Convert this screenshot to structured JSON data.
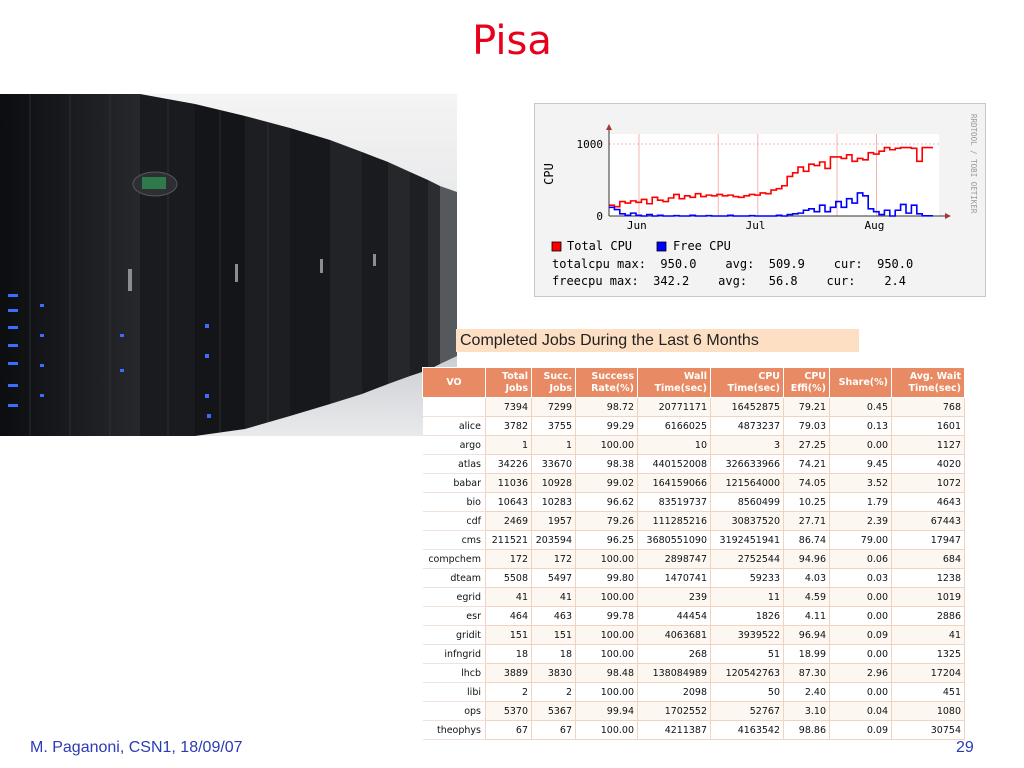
{
  "slide": {
    "title": "Pisa",
    "footer_left": "M. Paganoni, CSN1, 18/09/07",
    "page_number": "29"
  },
  "photo": {
    "description_icon": "server-racks-photo"
  },
  "rrd_chart": {
    "side_label": "RRDTOOL / TOBI OETIKER",
    "legend": {
      "total_label": "Total CPU",
      "free_label": "Free CPU",
      "total_color": "#ff0000",
      "free_color": "#0000ff"
    },
    "stats": {
      "line1": "totalcpu max:  950.0    avg:  509.9    cur:  950.0",
      "line2": "freecpu max:  342.2    avg:   56.8    cur:    2.4"
    }
  },
  "chart_data": {
    "type": "line",
    "title": "",
    "xlabel": "",
    "ylabel": "CPU",
    "ylim": [
      0,
      1000
    ],
    "y_ticks": [
      "0",
      "1000"
    ],
    "x_tick_labels": [
      "Jun",
      "Jul",
      "Aug"
    ],
    "grid": true,
    "legend_placement": "bottom",
    "series": [
      {
        "name": "Total CPU",
        "color": "#ff0000",
        "values": [
          150,
          130,
          200,
          180,
          210,
          190,
          230,
          170,
          260,
          220,
          200,
          250,
          300,
          240,
          280,
          260,
          310,
          270,
          290,
          280,
          300,
          280,
          290,
          270,
          260,
          280,
          300,
          290,
          320,
          310,
          360,
          380,
          420,
          550,
          600,
          680,
          620,
          720,
          700,
          750,
          660,
          820,
          820,
          800,
          850,
          760,
          800,
          780,
          880,
          860,
          900,
          950,
          920,
          940,
          950,
          950,
          940,
          760,
          950,
          950
        ]
      },
      {
        "name": "Free CPU",
        "color": "#0000ff",
        "values": [
          120,
          90,
          30,
          10,
          40,
          10,
          0,
          20,
          0,
          10,
          0,
          0,
          5,
          0,
          0,
          10,
          0,
          0,
          5,
          0,
          0,
          0,
          10,
          0,
          0,
          0,
          5,
          0,
          0,
          0,
          0,
          10,
          0,
          20,
          30,
          40,
          80,
          100,
          60,
          150,
          60,
          120,
          200,
          120,
          240,
          180,
          320,
          280,
          100,
          60,
          20,
          80,
          0,
          80,
          160,
          40,
          150,
          30,
          2,
          2
        ]
      }
    ]
  },
  "jobs_table": {
    "title": "Completed Jobs During the Last 6 Months",
    "headers": [
      {
        "l1": "VO",
        "l2": ""
      },
      {
        "l1": "Total",
        "l2": "Jobs"
      },
      {
        "l1": "Succ.",
        "l2": "Jobs"
      },
      {
        "l1": "Success",
        "l2": "Rate(%)"
      },
      {
        "l1": "Wall",
        "l2": "Time(sec)"
      },
      {
        "l1": "CPU",
        "l2": "Time(sec)"
      },
      {
        "l1": "CPU",
        "l2": "Effi(%)"
      },
      {
        "l1": "Share(%)",
        "l2": ""
      },
      {
        "l1": "Avg. Wait",
        "l2": "Time(sec)"
      }
    ],
    "rows": [
      [
        "",
        "7394",
        "7299",
        "98.72",
        "20771171",
        "16452875",
        "79.21",
        "0.45",
        "768"
      ],
      [
        "alice",
        "3782",
        "3755",
        "99.29",
        "6166025",
        "4873237",
        "79.03",
        "0.13",
        "1601"
      ],
      [
        "argo",
        "1",
        "1",
        "100.00",
        "10",
        "3",
        "27.25",
        "0.00",
        "1127"
      ],
      [
        "atlas",
        "34226",
        "33670",
        "98.38",
        "440152008",
        "326633966",
        "74.21",
        "9.45",
        "4020"
      ],
      [
        "babar",
        "11036",
        "10928",
        "99.02",
        "164159066",
        "121564000",
        "74.05",
        "3.52",
        "1072"
      ],
      [
        "bio",
        "10643",
        "10283",
        "96.62",
        "83519737",
        "8560499",
        "10.25",
        "1.79",
        "4643"
      ],
      [
        "cdf",
        "2469",
        "1957",
        "79.26",
        "111285216",
        "30837520",
        "27.71",
        "2.39",
        "67443"
      ],
      [
        "cms",
        "211521",
        "203594",
        "96.25",
        "3680551090",
        "3192451941",
        "86.74",
        "79.00",
        "17947"
      ],
      [
        "compchem",
        "172",
        "172",
        "100.00",
        "2898747",
        "2752544",
        "94.96",
        "0.06",
        "684"
      ],
      [
        "dteam",
        "5508",
        "5497",
        "99.80",
        "1470741",
        "59233",
        "4.03",
        "0.03",
        "1238"
      ],
      [
        "egrid",
        "41",
        "41",
        "100.00",
        "239",
        "11",
        "4.59",
        "0.00",
        "1019"
      ],
      [
        "esr",
        "464",
        "463",
        "99.78",
        "44454",
        "1826",
        "4.11",
        "0.00",
        "2886"
      ],
      [
        "gridit",
        "151",
        "151",
        "100.00",
        "4063681",
        "3939522",
        "96.94",
        "0.09",
        "41"
      ],
      [
        "infngrid",
        "18",
        "18",
        "100.00",
        "268",
        "51",
        "18.99",
        "0.00",
        "1325"
      ],
      [
        "lhcb",
        "3889",
        "3830",
        "98.48",
        "138084989",
        "120542763",
        "87.30",
        "2.96",
        "17204"
      ],
      [
        "libi",
        "2",
        "2",
        "100.00",
        "2098",
        "50",
        "2.40",
        "0.00",
        "451"
      ],
      [
        "ops",
        "5370",
        "5367",
        "99.94",
        "1702552",
        "52767",
        "3.10",
        "0.04",
        "1080"
      ],
      [
        "theophys",
        "67",
        "67",
        "100.00",
        "4211387",
        "4163542",
        "98.86",
        "0.09",
        "30754"
      ]
    ]
  }
}
